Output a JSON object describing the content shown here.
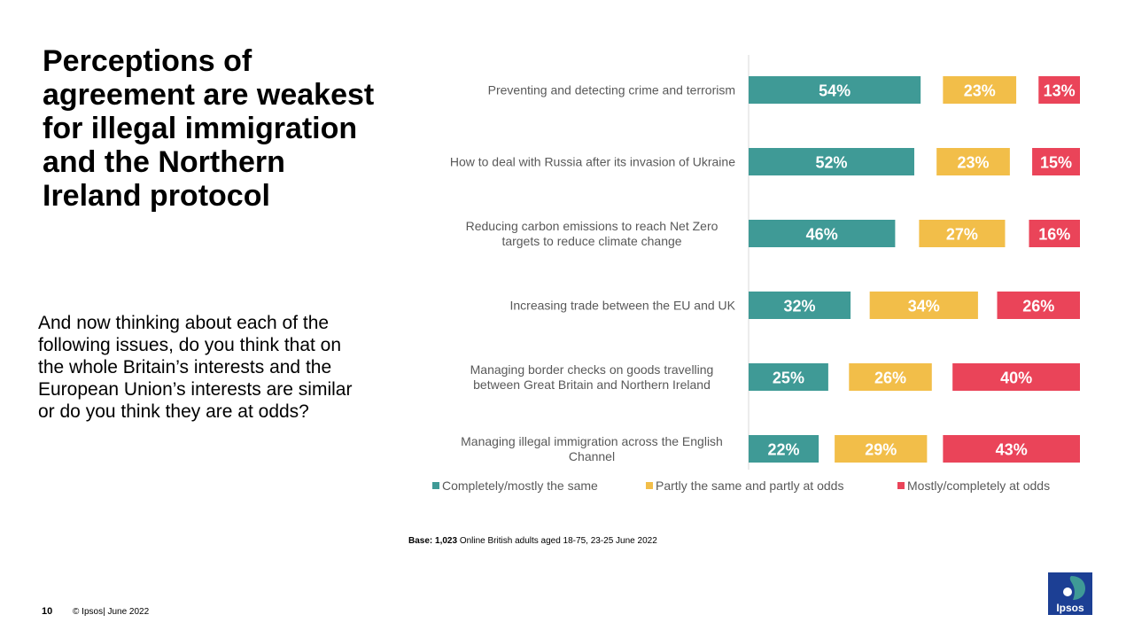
{
  "title": "Perceptions of agreement are weakest for illegal immigration and the Northern Ireland protocol",
  "question": "And now thinking about each of the following issues, do you think that on the whole Britain’s interests and the European Union’s interests are similar or do you think they are at odds?",
  "base": {
    "prefix": "Base: 1,023",
    "text": " Online British adults aged 18-75, 23-25 June 2022"
  },
  "footer": {
    "page": "10",
    "copyright": "© Ipsos| June 2022"
  },
  "logo": {
    "text": "Ipsos"
  },
  "colors": {
    "same": "#3F9A96",
    "partly": "#F2BE49",
    "odds": "#EA4459",
    "label": "#595959",
    "axis": "#D9D9D9"
  },
  "chart_data": {
    "type": "bar",
    "orientation": "horizontal",
    "categories": [
      [
        "Preventing and detecting crime and terrorism"
      ],
      [
        "How to deal with Russia after its invasion of Ukraine"
      ],
      [
        "Reducing carbon emissions to reach Net Zero",
        "targets to reduce climate change"
      ],
      [
        "Increasing trade between the EU and UK"
      ],
      [
        "Managing border checks on goods travelling",
        "between Great Britain and Northern Ireland"
      ],
      [
        "Managing illegal immigration across the English",
        "Channel"
      ]
    ],
    "series": [
      {
        "name": "Completely/mostly the same",
        "key": "same",
        "values": [
          54,
          52,
          46,
          32,
          25,
          22
        ]
      },
      {
        "name": "Partly the same and partly at odds",
        "key": "partly",
        "values": [
          23,
          23,
          27,
          34,
          26,
          29
        ]
      },
      {
        "name": "Mostly/completely at odds",
        "key": "odds",
        "values": [
          13,
          15,
          16,
          26,
          40,
          43
        ]
      }
    ],
    "value_suffix": "%",
    "legend_position": "bottom"
  }
}
